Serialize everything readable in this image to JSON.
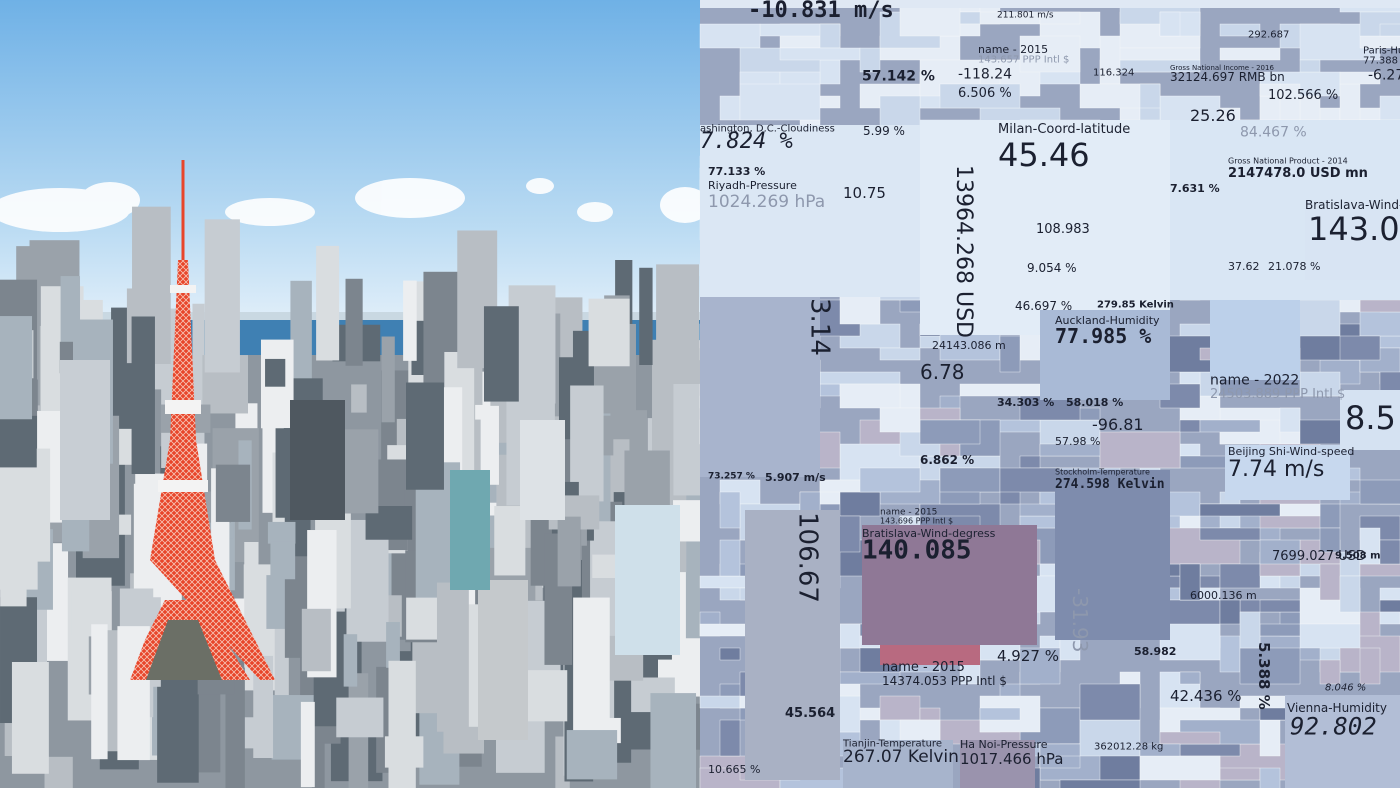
{
  "texts": [
    "-10.831 m/s",
    "211.801 m/s",
    "292.687",
    "Paris-Humidity",
    "77.388 %",
    "-6.27",
    "57.142 %",
    "-118.24",
    "name - 2015",
    "143.657 PPP Intl $",
    "116.324",
    "Gross National Income - 2016",
    "32124.697 RMB bn",
    "6.506 %",
    "102.566 %",
    "25.26",
    "ashington, D.C.-Cloudiness",
    "7.824 %",
    "5.99 %",
    "Milan-Coord-latitude",
    "45.46",
    "84.467 %",
    "Gross National Product - 2014",
    "2147478.0 USD mn",
    "77.133 %",
    "Riyadh-Pressure",
    "1024.269 hPa",
    "10.75",
    "13964.268 USD",
    "7.631 %",
    "Bratislava-Wind-degrees",
    "143.0",
    "108.983",
    "9.054 %",
    "37.62",
    "21.078 %",
    "3.14",
    "46.697 %",
    "279.85 Kelvin",
    "Auckland-Humidity",
    "77.985 %",
    "24143.086 m",
    "6.78",
    "name - 2022",
    "24503.889 PPP Intl $",
    "8.5",
    "34.303 %",
    "58.018 %",
    "-96.81",
    "57.98 %",
    "Beijing Shi-Wind-speed",
    "7.74 m/s",
    "6.862 %",
    "274.598 Kelvin",
    "Stockholm-Temperature",
    "73.257 %",
    "5.907 m/s",
    "106.67",
    "name - 2015",
    "143.696 PPP Intl $",
    "Bratislava-Wind-degress",
    "140.085",
    "7699.027 USD",
    "9.508 m",
    "6000.136 m",
    "-31.93",
    "4.927 %",
    "name - 2015",
    "14374.053 PPP Intl $",
    "58.982",
    "42.436 %",
    "5.388 %",
    "Vienna-Humidity",
    "92.802",
    "45.564",
    "10.665 %",
    "Tianjin-Temperature",
    "267.07 Kelvin",
    "Ha Noi-Pressure",
    "1017.466 hPa",
    "362012.28 kg",
    "8.046 %"
  ]
}
